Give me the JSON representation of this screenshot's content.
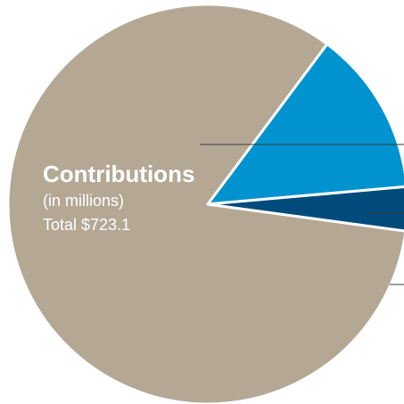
{
  "chart_data": {
    "type": "pie",
    "title": "Contributions",
    "subtitle": "(in millions)",
    "total_label": "Total $723.1",
    "total": 723.1,
    "slices": [
      {
        "value": 600.5,
        "color": "#b4a895"
      },
      {
        "value": 96.9,
        "color": "#0093cf"
      },
      {
        "value": 25.7,
        "color": "#004b7c"
      }
    ]
  }
}
